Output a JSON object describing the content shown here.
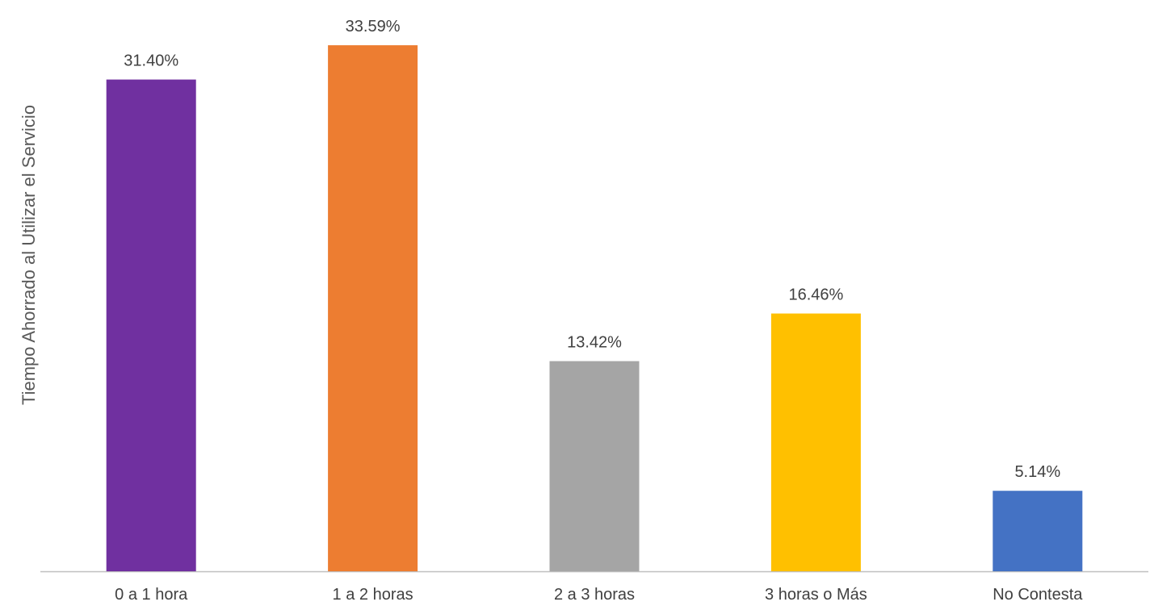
{
  "chart_data": {
    "type": "bar",
    "title": "",
    "xlabel": "",
    "ylabel": "Tiempo Ahorrado al Utilizar el Servicio",
    "ylim": [
      0,
      35.5
    ],
    "grid": false,
    "legend": "none",
    "categories": [
      "0 a 1 hora",
      "1 a 2 horas",
      "2 a 3 horas",
      "3 horas o Más",
      "No Contesta"
    ],
    "values": [
      31.4,
      33.59,
      13.42,
      16.46,
      5.14
    ],
    "value_labels": [
      "31.40%",
      "33.59%",
      "13.42%",
      "16.46%",
      "5.14%"
    ],
    "colors": [
      "#7030A0",
      "#ED7D31",
      "#A5A5A5",
      "#FFC000",
      "#4472C4"
    ],
    "axis_color": "#BFBFBF"
  }
}
